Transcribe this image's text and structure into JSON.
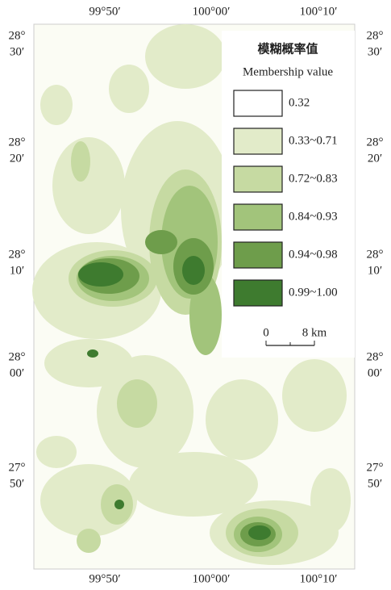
{
  "lon_labels_top": [
    "99°50′",
    "100°00′",
    "100°10′"
  ],
  "lon_labels_bottom": [
    "99°50′",
    "100°00′",
    "100°10′"
  ],
  "lat_labels_left": [
    {
      "deg": "28°",
      "min": "30′"
    },
    {
      "deg": "28°",
      "min": "20′"
    },
    {
      "deg": "28°",
      "min": "10′"
    },
    {
      "deg": "28°",
      "min": "00′"
    },
    {
      "deg": "27°",
      "min": "50′"
    }
  ],
  "lat_labels_right": [
    {
      "deg": "28°",
      "min": "30′"
    },
    {
      "deg": "28°",
      "min": "20′"
    },
    {
      "deg": "28°",
      "min": "10′"
    },
    {
      "deg": "28°",
      "min": "00′"
    },
    {
      "deg": "27°",
      "min": "50′"
    }
  ],
  "legend": {
    "title_cn": "模糊概率值",
    "title_en": "Membership value",
    "items": [
      {
        "label": "0.32",
        "color": "#ffffff"
      },
      {
        "label": "0.33~0.71",
        "color": "#e2ebc9"
      },
      {
        "label": "0.72~0.83",
        "color": "#c6daa2"
      },
      {
        "label": "0.84~0.93",
        "color": "#a2c47b"
      },
      {
        "label": "0.94~0.98",
        "color": "#6e9d4b"
      },
      {
        "label": "0.99~1.00",
        "color": "#3e7b2f"
      }
    ]
  },
  "scale_bar": {
    "start": "0",
    "end": "8 km"
  }
}
